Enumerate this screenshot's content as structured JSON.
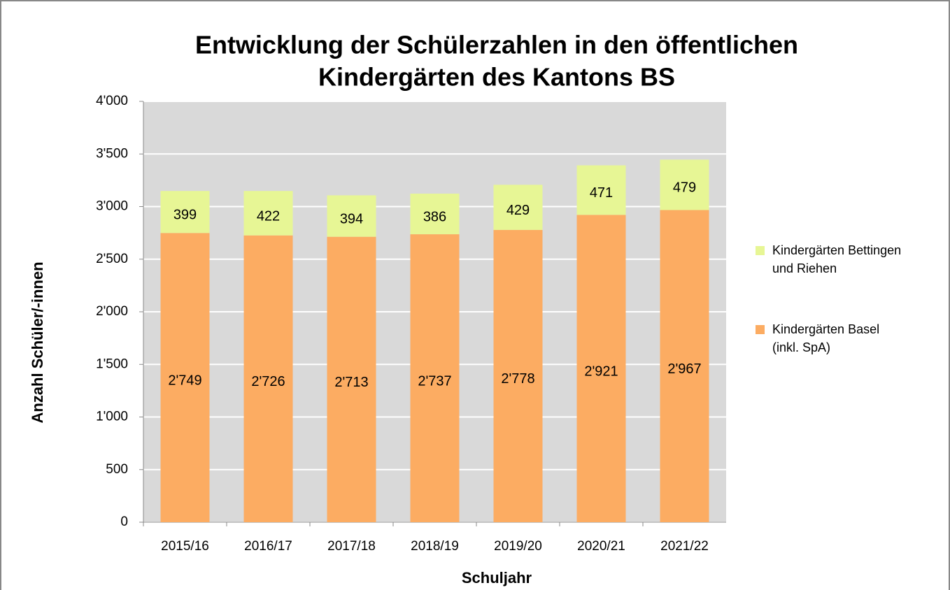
{
  "chart_data": {
    "type": "stacked_bar",
    "title": [
      "Entwicklung der Schülerzahlen in den öffentlichen",
      "Kindergärten des Kantons BS"
    ],
    "x_label": "Schuljahr",
    "y_label": "Anzahl Schüler/-innen",
    "categories": [
      "2015/16",
      "2016/17",
      "2017/18",
      "2018/19",
      "2019/20",
      "2020/21",
      "2021/22"
    ],
    "series": [
      {
        "name": "Kindergärten Basel (inkl. SpA)",
        "color": "#fcac62",
        "values": [
          2749,
          2726,
          2713,
          2737,
          2778,
          2921,
          2967
        ],
        "value_labels": [
          "2'749",
          "2'726",
          "2'713",
          "2'737",
          "2'778",
          "2'921",
          "2'967"
        ]
      },
      {
        "name": "Kindergärten Bettingen und Riehen",
        "color": "#e7f695",
        "values": [
          399,
          422,
          394,
          386,
          429,
          471,
          479
        ]
      }
    ],
    "ylim": [
      0,
      4000
    ],
    "yticks": [
      0,
      500,
      {
        "value": 1000,
        "label": "1'000"
      },
      {
        "value": 1500,
        "label": "1'500"
      },
      {
        "value": 2000,
        "label": "2'000"
      },
      {
        "value": 2500,
        "label": "2'500"
      },
      {
        "value": 3000,
        "label": "3'000"
      },
      {
        "value": 3500,
        "label": "3'500"
      },
      {
        "value": 4000,
        "label": "4'000"
      }
    ],
    "grid": true,
    "legend": "right"
  }
}
